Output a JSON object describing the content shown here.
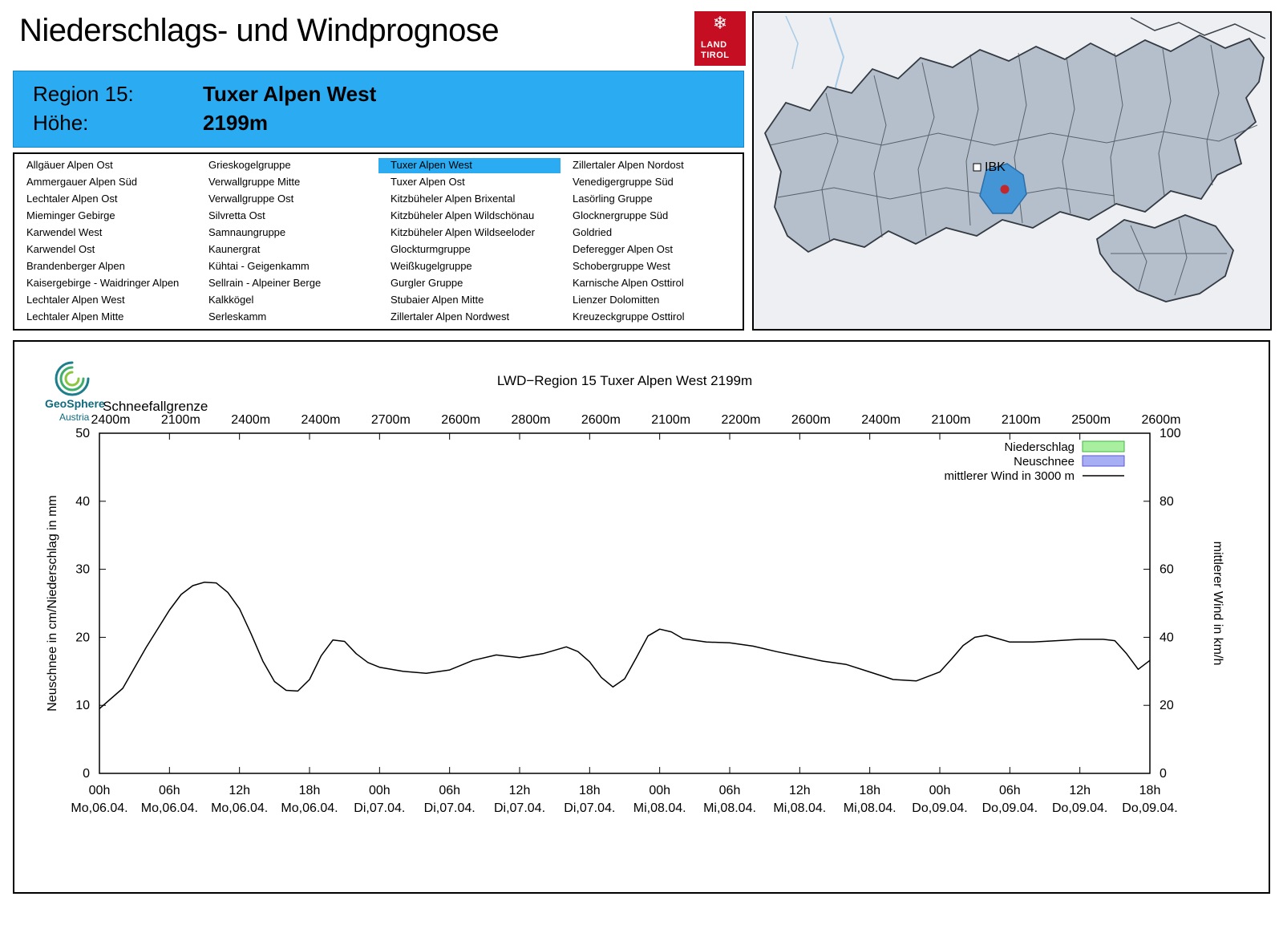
{
  "header": {
    "title": "Niederschlags- und Windprognose"
  },
  "logo": {
    "snowflake": "❄",
    "line1": "LAND",
    "line2": "TIROL",
    "color": "#c50e22"
  },
  "region_header": {
    "region_label": "Region 15:",
    "region_value": "Tuxer Alpen West",
    "altitude_label": "Höhe:",
    "altitude_value": "2199m",
    "bg_color": "#2aabf2"
  },
  "region_list": {
    "selected": "Tuxer Alpen West",
    "columns": [
      [
        "Allgäuer Alpen Ost",
        "Ammergauer Alpen Süd",
        "Lechtaler Alpen Ost",
        "Mieminger Gebirge",
        "Karwendel West",
        "Karwendel Ost",
        "Brandenberger Alpen",
        "Kaisergebirge - Waidringer Alpen",
        "Lechtaler Alpen West",
        "Lechtaler Alpen Mitte"
      ],
      [
        "Grieskogelgruppe",
        "Verwallgruppe Mitte",
        "Verwallgruppe Ost",
        "Silvretta Ost",
        "Samnaungruppe",
        "Kaunergrat",
        "Kühtai - Geigenkamm",
        "Sellrain - Alpeiner Berge",
        "Kalkkögel",
        "Serleskamm"
      ],
      [
        "Tuxer Alpen West",
        "Tuxer Alpen Ost",
        "Kitzbüheler Alpen Brixental",
        "Kitzbüheler Alpen Wildschönau",
        "Kitzbüheler Alpen Wildseeloder",
        "Glockturmgruppe",
        "Weißkugelgruppe",
        "Gurgler Gruppe",
        "Stubaier Alpen Mitte",
        "Zillertaler Alpen Nordwest"
      ],
      [
        "Zillertaler Alpen Nordost",
        "Venedigergruppe Süd",
        "Lasörling Gruppe",
        "Glocknergruppe Süd",
        "Goldried",
        "Deferegger Alpen Ost",
        "Schobergruppe West",
        "Karnische Alpen Osttirol",
        "Lienzer Dolomitten",
        "Kreuzeckgruppe Osttirol"
      ]
    ]
  },
  "map": {
    "marker_label": "IBK",
    "highlight_color": "#4395d6",
    "marker_dot_color": "#c3272b"
  },
  "geosphere": {
    "line1": "GeoSphere",
    "line2": "Austria"
  },
  "chart_data": {
    "type": "line",
    "title": "LWD−Region 15 Tuxer Alpen West 2199m",
    "snowline_label": "Schneefallgrenze",
    "snowline_values": [
      "2400m",
      "2100m",
      "2400m",
      "2400m",
      "2700m",
      "2600m",
      "2800m",
      "2600m",
      "2100m",
      "2200m",
      "2600m",
      "2400m",
      "2100m",
      "2100m",
      "2500m",
      "2600m"
    ],
    "ylabel_left": "Neuschnee in cm/Niederschlag in mm",
    "ylabel_right": "mittlerer Wind in km/h",
    "ylim_left": [
      0,
      50
    ],
    "ylim_right": [
      0,
      100
    ],
    "yticks_left": [
      0,
      10,
      20,
      30,
      40,
      50
    ],
    "yticks_right": [
      0,
      20,
      40,
      60,
      80,
      100
    ],
    "x_range_hours": [
      0,
      90
    ],
    "x_tick_hours": [
      "00h",
      "06h",
      "12h",
      "18h",
      "00h",
      "06h",
      "12h",
      "18h",
      "00h",
      "06h",
      "12h",
      "18h",
      "00h",
      "06h",
      "12h",
      "18h"
    ],
    "x_tick_dates": [
      "Mo,06.04.",
      "Mo,06.04.",
      "Mo,06.04.",
      "Mo,06.04.",
      "Di,07.04.",
      "Di,07.04.",
      "Di,07.04.",
      "Di,07.04.",
      "Mi,08.04.",
      "Mi,08.04.",
      "Mi,08.04.",
      "Mi,08.04.",
      "Do,09.04.",
      "Do,09.04.",
      "Do,09.04.",
      "Do,09.04."
    ],
    "grid": false,
    "legend_position": "top-right",
    "legend": [
      {
        "label": "Niederschlag",
        "type": "box",
        "fill": "#a8f0a0",
        "stroke": "#3cb83c"
      },
      {
        "label": "Neuschnee",
        "type": "box",
        "fill": "#a8aef4",
        "stroke": "#5858d8"
      },
      {
        "label": "mittlerer Wind in 3000 m",
        "type": "line",
        "stroke": "#000000"
      }
    ],
    "series": [
      {
        "name": "mittlerer Wind in 3000 m",
        "unit": "plotted in left-axis units (km/h = value × 2)",
        "points": [
          [
            0,
            9.5
          ],
          [
            2,
            12.5
          ],
          [
            4,
            18.5
          ],
          [
            6,
            24
          ],
          [
            7,
            26.3
          ],
          [
            8,
            27.6
          ],
          [
            9,
            28.1
          ],
          [
            10,
            28
          ],
          [
            11,
            26.6
          ],
          [
            12,
            24.2
          ],
          [
            13,
            20.5
          ],
          [
            14,
            16.5
          ],
          [
            15,
            13.5
          ],
          [
            16,
            12.2
          ],
          [
            17,
            12.1
          ],
          [
            18,
            13.8
          ],
          [
            19,
            17.3
          ],
          [
            20,
            19.6
          ],
          [
            21,
            19.4
          ],
          [
            22,
            17.6
          ],
          [
            23,
            16.3
          ],
          [
            24,
            15.6
          ],
          [
            26,
            15
          ],
          [
            28,
            14.7
          ],
          [
            30,
            15.2
          ],
          [
            32,
            16.6
          ],
          [
            34,
            17.4
          ],
          [
            36,
            17
          ],
          [
            38,
            17.6
          ],
          [
            40,
            18.6
          ],
          [
            41,
            17.9
          ],
          [
            42,
            16.4
          ],
          [
            43,
            14.1
          ],
          [
            44,
            12.7
          ],
          [
            45,
            13.9
          ],
          [
            46,
            17
          ],
          [
            47,
            20.2
          ],
          [
            48,
            21.2
          ],
          [
            49,
            20.8
          ],
          [
            50,
            19.8
          ],
          [
            52,
            19.3
          ],
          [
            54,
            19.2
          ],
          [
            56,
            18.7
          ],
          [
            58,
            17.9
          ],
          [
            60,
            17.2
          ],
          [
            62,
            16.5
          ],
          [
            64,
            16
          ],
          [
            66,
            14.9
          ],
          [
            68,
            13.8
          ],
          [
            70,
            13.6
          ],
          [
            72,
            14.9
          ],
          [
            73,
            16.8
          ],
          [
            74,
            18.8
          ],
          [
            75,
            20
          ],
          [
            76,
            20.3
          ],
          [
            77,
            19.8
          ],
          [
            78,
            19.3
          ],
          [
            80,
            19.3
          ],
          [
            82,
            19.5
          ],
          [
            84,
            19.7
          ],
          [
            86,
            19.7
          ],
          [
            87,
            19.5
          ],
          [
            88,
            17.6
          ],
          [
            89,
            15.3
          ],
          [
            90,
            16.6
          ]
        ]
      }
    ],
    "niederschlag_bars_visible": false,
    "neuschnee_bars_visible": false
  }
}
